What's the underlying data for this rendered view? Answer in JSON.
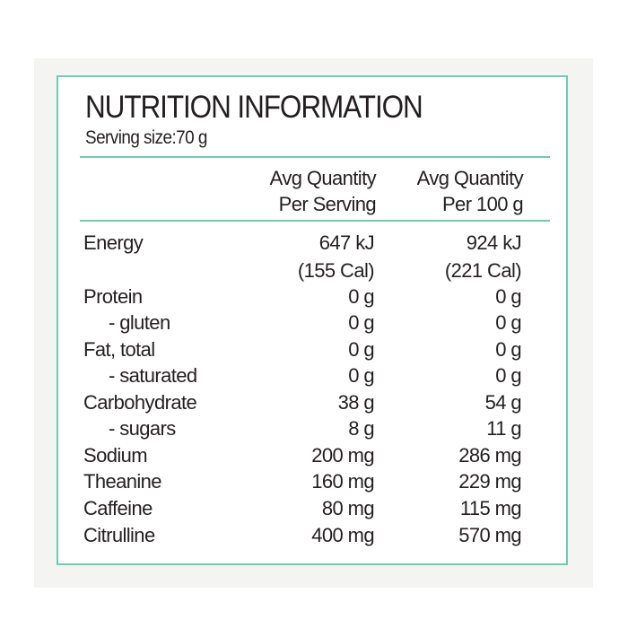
{
  "label": {
    "title": "NUTRITION INFORMATION",
    "serving_size": "Serving size:70 g",
    "columns": [
      {
        "line1": "Avg Quantity",
        "line2": "Per Serving"
      },
      {
        "line1": "Avg Quantity",
        "line2": "Per 100 g"
      }
    ],
    "rows": [
      {
        "name": "Energy",
        "per_serving": "647 kJ",
        "per_100g": "924 kJ"
      },
      {
        "name": "",
        "per_serving": "(155 Cal)",
        "per_100g": "(221 Cal)"
      },
      {
        "name": "Protein",
        "per_serving": "0 g",
        "per_100g": "0 g"
      },
      {
        "name": "- gluten",
        "per_serving": "0 g",
        "per_100g": "0 g"
      },
      {
        "name": "Fat, total",
        "per_serving": "0 g",
        "per_100g": "0 g"
      },
      {
        "name": "- saturated",
        "per_serving": "0 g",
        "per_100g": "0 g"
      },
      {
        "name": "Carbohydrate",
        "per_serving": "38 g",
        "per_100g": "54 g"
      },
      {
        "name": "- sugars",
        "per_serving": "8 g",
        "per_100g": "11 g"
      },
      {
        "name": "Sodium",
        "per_serving": "200 mg",
        "per_100g": "286 mg"
      },
      {
        "name": "Theanine",
        "per_serving": "160 mg",
        "per_100g": "229 mg"
      },
      {
        "name": "Caffeine",
        "per_serving": "80 mg",
        "per_100g": "115 mg"
      },
      {
        "name": "Citrulline",
        "per_serving": "400 mg",
        "per_100g": "570 mg"
      }
    ]
  }
}
